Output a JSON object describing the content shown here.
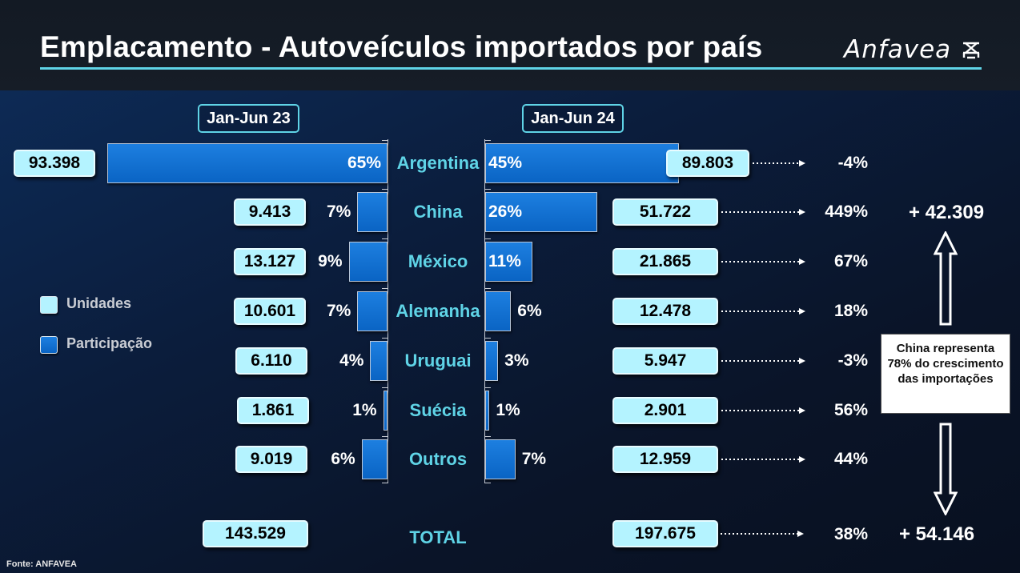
{
  "title": "Emplacamento - Autoveículos importados por país",
  "logo": "Anfavea",
  "colors": {
    "accent": "#5fd3e6",
    "bar": "#0a64c4",
    "value_box": "#b4f3ff",
    "background": "#0b1d3c"
  },
  "legend": [
    {
      "label": "Unidades",
      "color": "#b4f3ff"
    },
    {
      "label": "Participação",
      "color": "#0a64c4"
    }
  ],
  "chart_data": {
    "type": "bar",
    "orientation": "horizontal-butterfly",
    "categories": [
      "Argentina",
      "China",
      "México",
      "Alemanha",
      "Uruguai",
      "Suécia",
      "Outros"
    ],
    "series": [
      {
        "name": "Jan-Jun 23",
        "units": [
          "93.398",
          "9.413",
          "13.127",
          "10.601",
          "6.110",
          "1.861",
          "9.019"
        ],
        "share": [
          65,
          7,
          9,
          7,
          4,
          1,
          6
        ],
        "share_labels": [
          "65%",
          "7%",
          "9%",
          "7%",
          "4%",
          "1%",
          "6%"
        ]
      },
      {
        "name": "Jan-Jun 24",
        "units": [
          "89.803",
          "51.722",
          "21.865",
          "12.478",
          "5.947",
          "2.901",
          "12.959"
        ],
        "share": [
          45,
          26,
          11,
          6,
          3,
          1,
          7
        ],
        "share_labels": [
          "45%",
          "26%",
          "11%",
          "6%",
          "3%",
          "1%",
          "7%"
        ]
      }
    ],
    "growth": [
      "-4%",
      "449%",
      "67%",
      "18%",
      "-3%",
      "56%",
      "44%"
    ],
    "total": {
      "label": "TOTAL",
      "jan_jun_23": "143.529",
      "jan_jun_24": "197.675",
      "growth": "38%"
    }
  },
  "annotations": {
    "china_increase": "+ 42.309",
    "total_increase": "+ 54.146",
    "note": "China representa 78% do crescimento das importações"
  },
  "source": "Fonte: ANFAVEA"
}
